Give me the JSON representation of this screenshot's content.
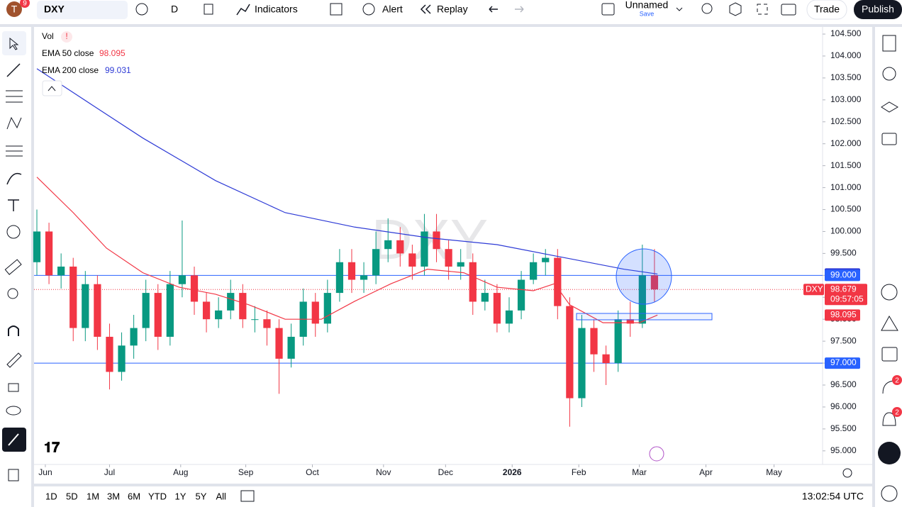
{
  "toolbar": {
    "symbol": "DXY",
    "avatar": "T",
    "avatar_badge": "9",
    "interval": "D",
    "indicators": "Indicators",
    "alert": "Alert",
    "replay": "Replay",
    "layout_name": "Unnamed",
    "save": "Save",
    "trade": "Trade",
    "publish": "Publish"
  },
  "legend": {
    "vol": "Vol"
  },
  "side_badges": [
    "2",
    "2"
  ],
  "time_ranges": [
    "1D",
    "5D",
    "1M",
    "3M",
    "6M",
    "YTD",
    "1Y",
    "5Y",
    "All"
  ],
  "clock": "13:02:54 UTC",
  "chart_data": {
    "type": "candlestick",
    "watermark": "DXY",
    "up_color": "#089981",
    "down_color": "#f23645",
    "x": [
      0,
      4,
      8,
      12,
      16,
      20,
      24,
      28,
      32,
      36,
      40,
      44,
      48,
      52,
      56,
      60,
      64,
      68,
      72,
      76,
      80,
      84,
      88,
      92,
      96,
      100,
      104,
      108,
      112,
      116,
      120,
      124,
      128,
      132,
      136,
      140,
      144,
      148,
      152,
      156,
      160,
      164,
      168,
      172,
      176,
      180,
      184,
      188,
      192,
      196,
      200,
      204
    ],
    "open": [
      99.3,
      100.0,
      99.0,
      99.2,
      97.8,
      98.8,
      97.6,
      96.8,
      97.4,
      97.8,
      98.6,
      97.6,
      98.8,
      99.0,
      98.4,
      98.0,
      98.2,
      98.6,
      98.0,
      98.0,
      97.8,
      97.1,
      97.6,
      98.4,
      97.9,
      98.6,
      99.3,
      98.9,
      99.0,
      99.6,
      99.8,
      99.5,
      99.2,
      100.0,
      99.6,
      99.2,
      99.3,
      98.4,
      98.6,
      97.9,
      98.2,
      98.9,
      99.3,
      99.4,
      98.3,
      96.2,
      97.8,
      97.2,
      97.0,
      98.0,
      97.9,
      99.0
    ],
    "high": [
      100.5,
      100.2,
      99.5,
      99.4,
      99.1,
      99.0,
      97.9,
      97.7,
      98.1,
      98.9,
      98.8,
      99.1,
      100.25,
      99.2,
      98.6,
      98.5,
      98.9,
      98.8,
      98.3,
      98.2,
      98.0,
      97.9,
      98.7,
      98.6,
      98.9,
      99.6,
      99.6,
      99.3,
      100.0,
      100.3,
      100.1,
      99.7,
      100.4,
      100.4,
      99.8,
      99.6,
      99.5,
      98.9,
      98.8,
      98.5,
      99.1,
      99.5,
      99.6,
      99.6,
      98.5,
      98.1,
      98.0,
      97.4,
      98.2,
      98.4,
      99.7,
      99.6
    ],
    "low": [
      99.0,
      98.8,
      98.7,
      97.5,
      97.5,
      97.3,
      96.4,
      96.6,
      97.1,
      97.5,
      97.3,
      97.4,
      98.5,
      98.1,
      97.7,
      97.8,
      98.0,
      97.8,
      97.7,
      97.4,
      96.3,
      96.9,
      97.4,
      97.6,
      97.7,
      98.4,
      98.6,
      98.6,
      98.8,
      99.3,
      99.2,
      98.9,
      99.0,
      99.3,
      98.9,
      98.9,
      98.1,
      98.2,
      97.7,
      97.7,
      98.0,
      98.8,
      99.0,
      98.0,
      95.55,
      96.0,
      96.8,
      96.5,
      96.8,
      97.6,
      97.8,
      98.4
    ],
    "close": [
      100.0,
      99.0,
      99.2,
      97.8,
      98.8,
      97.6,
      96.8,
      97.4,
      97.8,
      98.6,
      97.6,
      98.8,
      99.0,
      98.4,
      98.0,
      98.2,
      98.6,
      98.0,
      98.0,
      97.8,
      97.1,
      97.6,
      98.4,
      97.9,
      98.6,
      99.3,
      98.9,
      99.0,
      99.6,
      99.8,
      99.5,
      99.2,
      100.0,
      99.6,
      99.2,
      99.3,
      98.4,
      98.6,
      97.9,
      98.2,
      98.9,
      99.3,
      99.4,
      98.3,
      96.2,
      97.8,
      97.2,
      97.0,
      98.0,
      97.9,
      99.0,
      98.68
    ],
    "series": [
      {
        "name": "EMA 50 close",
        "color": "#f23645",
        "value_label": "98.095",
        "x": [
          0,
          12,
          23,
          35,
          47,
          59,
          70,
          82,
          94,
          105,
          117,
          129,
          141,
          152,
          164,
          171,
          176,
          187,
          199,
          205
        ],
        "values": [
          101.24,
          100.43,
          99.62,
          99.06,
          98.73,
          98.57,
          98.33,
          98.0,
          98.0,
          98.41,
          98.81,
          99.14,
          99.06,
          98.73,
          98.65,
          98.81,
          98.33,
          97.92,
          97.92,
          98.095
        ]
      },
      {
        "name": "EMA 200 close",
        "color": "#2e3bd6",
        "value_label": "99.031",
        "x": [
          0,
          19,
          35,
          59,
          82,
          105,
          129,
          152,
          176,
          194,
          205
        ],
        "values": [
          103.71,
          102.85,
          102.13,
          101.16,
          100.43,
          100.1,
          99.86,
          99.7,
          99.38,
          99.14,
          99.031
        ]
      }
    ],
    "price_lines": [
      {
        "value": 99.0,
        "label": "99.000",
        "color": "#2962ff"
      },
      {
        "value": 97.0,
        "label": "97.000",
        "color": "#2962ff"
      }
    ],
    "last_price": {
      "symbol": "DXY",
      "value": 98.679,
      "label": "98.679",
      "countdown": "09:57:05",
      "color": "#f23645"
    },
    "xlim": [
      0,
      260
    ],
    "ylim": [
      94.69,
      104.63
    ],
    "xticks": [
      {
        "value": 2.8,
        "label": "Jun"
      },
      {
        "value": 24,
        "label": "Jul"
      },
      {
        "value": 47.5,
        "label": "Aug"
      },
      {
        "value": 69,
        "label": "Sep"
      },
      {
        "value": 91,
        "label": "Oct"
      },
      {
        "value": 114.5,
        "label": "Nov"
      },
      {
        "value": 135,
        "label": "Dec"
      },
      {
        "value": 157,
        "label": "2026"
      },
      {
        "value": 179,
        "label": "Feb"
      },
      {
        "value": 199,
        "label": "Mar"
      },
      {
        "value": 221,
        "label": "Apr"
      },
      {
        "value": 243.5,
        "label": "May"
      }
    ],
    "yticks": [
      {
        "value": 95,
        "label": "95.000"
      },
      {
        "value": 95.5,
        "label": "95.500"
      },
      {
        "value": 96,
        "label": "96.000"
      },
      {
        "value": 96.5,
        "label": "96.500"
      },
      {
        "value": 97,
        "label": "97.000"
      },
      {
        "value": 97.5,
        "label": "97.500"
      },
      {
        "value": 98,
        "label": "98.000"
      },
      {
        "value": 98.5,
        "label": "98.500"
      },
      {
        "value": 99,
        "label": "99.000"
      },
      {
        "value": 99.5,
        "label": "99.500"
      },
      {
        "value": 100,
        "label": "100.000"
      },
      {
        "value": 100.5,
        "label": "100.500"
      },
      {
        "value": 101,
        "label": "101.000"
      },
      {
        "value": 101.5,
        "label": "101.500"
      },
      {
        "value": 102,
        "label": "102.000"
      },
      {
        "value": 102.5,
        "label": "102.500"
      },
      {
        "value": 103,
        "label": "103.000"
      },
      {
        "value": 103.5,
        "label": "103.500"
      },
      {
        "value": 104,
        "label": "104.000"
      },
      {
        "value": 104.5,
        "label": "104.500"
      }
    ]
  }
}
